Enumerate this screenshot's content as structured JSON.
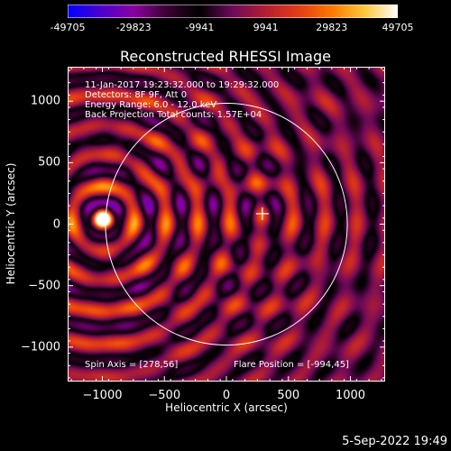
{
  "colorbar": {
    "ticks": [
      "-49705",
      "-29823",
      "-9941",
      "9941",
      "29823",
      "49705"
    ],
    "range": [
      -49705,
      49705
    ],
    "colors": [
      "#0000ff",
      "#4b00d2",
      "#8a00a0",
      "#3c0032",
      "#000000",
      "#6e0a5a",
      "#b41e32",
      "#e63c14",
      "#ff7800",
      "#ffc83c",
      "#ffffff"
    ]
  },
  "chart_data": {
    "type": "heatmap",
    "title": "Reconstructed RHESSI Image",
    "xlabel": "Heliocentric X (arcsec)",
    "ylabel": "Heliocentric Y (arcsec)",
    "xlim": [
      -1280,
      1280
    ],
    "ylim": [
      -1280,
      1280
    ],
    "xticks": [
      -1000,
      -500,
      0,
      500,
      1000
    ],
    "yticks": [
      -1000,
      -500,
      0,
      500,
      1000
    ],
    "xticklabels": [
      "−1000",
      "−500",
      "0",
      "500",
      "1000"
    ],
    "yticklabels": [
      "−1000",
      "−500",
      "0",
      "500",
      "1000"
    ],
    "solar_limb": {
      "center": [
        0,
        0
      ],
      "radius": 975
    },
    "flare_marker": [
      290,
      85
    ],
    "bright_source": [
      -994,
      45
    ],
    "annotations": [
      "11-Jan-2017 19:23:32.000 to 19:29:32.000",
      "Detectors: 8F 9F, Att 0",
      "Energy Range: 6.0 - 12.0 keV",
      "Back Projection    Total counts: 1.57E+04"
    ],
    "spin_axis": "Spin Axis = [278,56]",
    "flare_position": "Flare Position = [-994,45]",
    "grid": false
  },
  "footer": {
    "timestamp": "5-Sep-2022 19:49"
  }
}
